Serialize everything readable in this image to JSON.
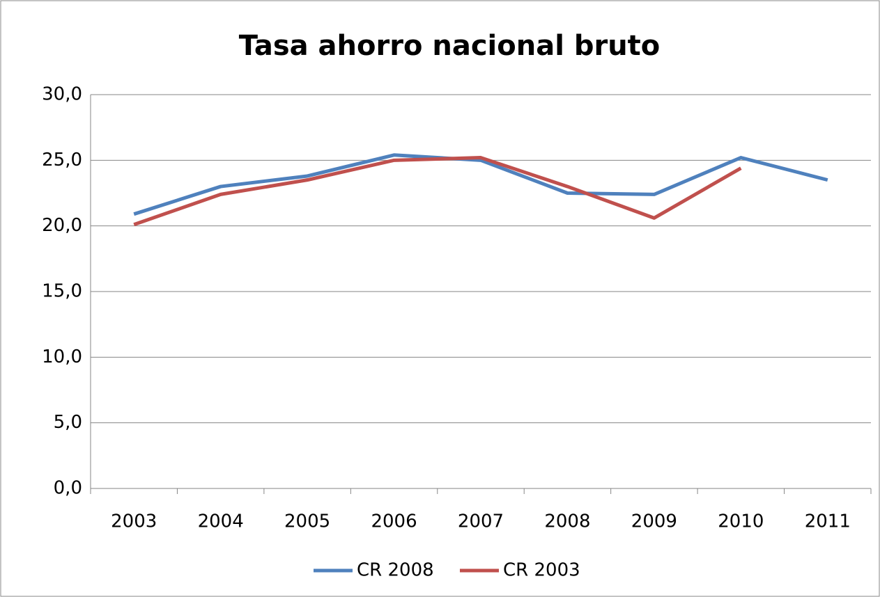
{
  "chart_data": {
    "type": "line",
    "title": "Tasa ahorro nacional bruto",
    "categories": [
      "2003",
      "2004",
      "2005",
      "2006",
      "2007",
      "2008",
      "2009",
      "2010",
      "2011"
    ],
    "series": [
      {
        "name": "CR 2008",
        "color": "#4f81bd",
        "values": [
          20.9,
          23.0,
          23.8,
          25.4,
          25.0,
          22.5,
          22.4,
          25.2,
          23.5
        ]
      },
      {
        "name": "CR 2003",
        "color": "#c0504d",
        "values": [
          20.1,
          22.4,
          23.5,
          25.0,
          25.2,
          23.0,
          20.6,
          24.4,
          null
        ]
      }
    ],
    "ylim": [
      0,
      30
    ],
    "yticks": [
      {
        "value": 0,
        "label": "0,0"
      },
      {
        "value": 5,
        "label": "5,0"
      },
      {
        "value": 10,
        "label": "10,0"
      },
      {
        "value": 15,
        "label": "15,0"
      },
      {
        "value": 20,
        "label": "20,0"
      },
      {
        "value": 25,
        "label": "25,0"
      },
      {
        "value": 30,
        "label": "30,0"
      }
    ],
    "grid": true,
    "legend": "bottom"
  }
}
